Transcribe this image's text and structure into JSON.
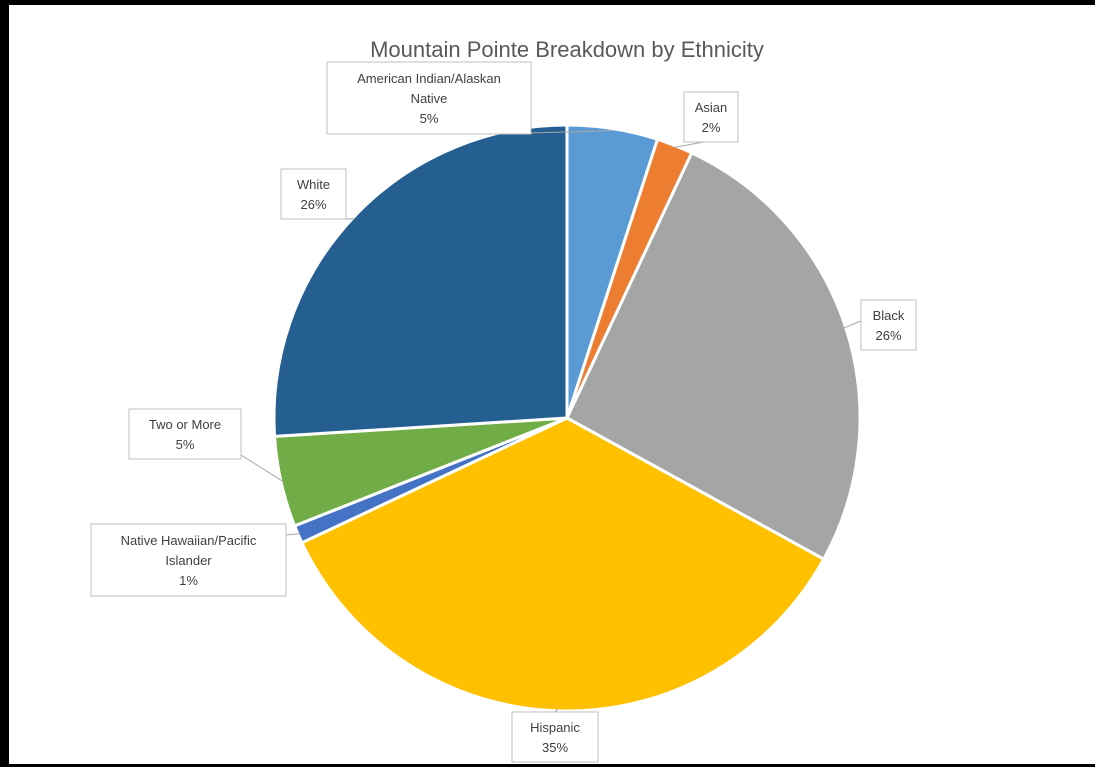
{
  "chart_data": {
    "type": "pie",
    "title": "Mountain Pointe Breakdown by Ethnicity",
    "slices": [
      {
        "category": "American Indian/Alaskan Native",
        "label_lines": [
          "American Indian/Alaskan",
          "Native"
        ],
        "value": 5,
        "value_label": "5%",
        "color": "#5B9BD5"
      },
      {
        "category": "Asian",
        "label_lines": [
          "Asian"
        ],
        "value": 2,
        "value_label": "2%",
        "color": "#ED7D31"
      },
      {
        "category": "Black",
        "label_lines": [
          "Black"
        ],
        "value": 26,
        "value_label": "26%",
        "color": "#A5A5A5"
      },
      {
        "category": "Hispanic",
        "label_lines": [
          "Hispanic"
        ],
        "value": 35,
        "value_label": "35%",
        "color": "#FFC000"
      },
      {
        "category": "Native Hawaiian/Pacific Islander",
        "label_lines": [
          "Native Hawaiian/Pacific",
          "Islander"
        ],
        "value": 1,
        "value_label": "1%",
        "color": "#4472C4"
      },
      {
        "category": "Two or More",
        "label_lines": [
          "Two or More"
        ],
        "value": 5,
        "value_label": "5%",
        "color": "#70AD47"
      },
      {
        "category": "White",
        "label_lines": [
          "White"
        ],
        "value": 26,
        "value_label": "26%",
        "color": "#255E91"
      }
    ]
  }
}
